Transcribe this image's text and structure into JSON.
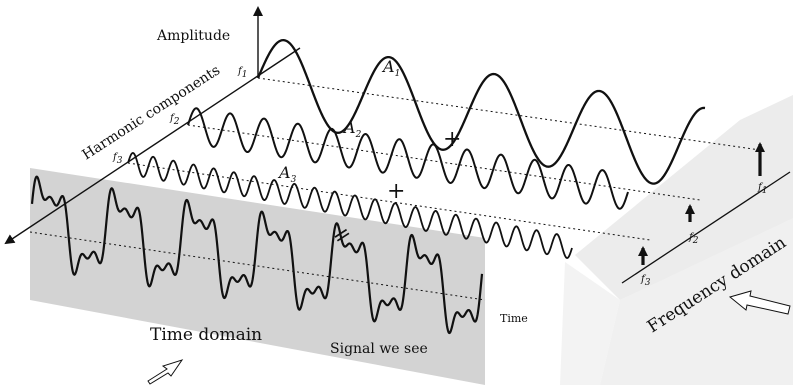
{
  "labels": {
    "amplitude": "Amplitude",
    "harmonic_components": "Harmonic components",
    "time": "Time",
    "time_domain": "Time domain",
    "signal_we_see": "Signal we see",
    "frequency_domain": "Frequency domain",
    "plus": "+",
    "equals": "="
  },
  "components": [
    {
      "amp_label": "A",
      "amp_sub": "1",
      "freq_label": "f",
      "freq_sub": "1",
      "relative_amplitude": 1.0,
      "relative_frequency": 1
    },
    {
      "amp_label": "A",
      "amp_sub": "2",
      "freq_label": "f",
      "freq_sub": "2",
      "relative_amplitude": 0.45,
      "relative_frequency": 3
    },
    {
      "amp_label": "A",
      "amp_sub": "3",
      "freq_label": "f",
      "freq_sub": "3",
      "relative_amplitude": 0.25,
      "relative_frequency": 5
    }
  ],
  "colors": {
    "ink": "#111111",
    "time_plane": "#d4d4d4",
    "freq_plane": "#e8e8e8",
    "freq_plane_side": "#f2f2f2"
  }
}
